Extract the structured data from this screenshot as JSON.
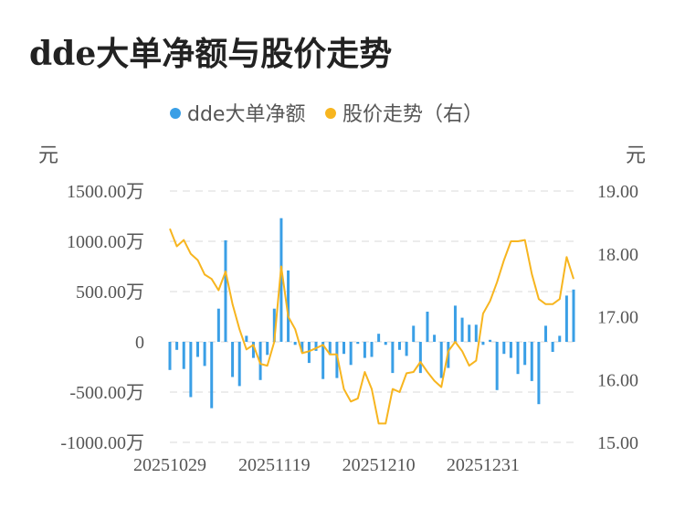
{
  "title": "dde大单净额与股价走势",
  "chart_data": {
    "type": "bar+line",
    "title": "dde大单净额与股价走势",
    "legend": {
      "placement": "top-center",
      "items": [
        {
          "name": "dde大单净额",
          "color": "#3a9fe6"
        },
        {
          "name": "股价走势（右）",
          "color": "#f7b51f"
        }
      ]
    },
    "left_unit": "元",
    "right_unit": "元",
    "left_axis": {
      "ticks": [
        -1000,
        -500,
        0,
        500,
        1000,
        1500
      ],
      "tick_labels": [
        "-1000.00万",
        "-500.00万",
        "0",
        "500.00万",
        "1000.00万",
        "1500.00万"
      ],
      "ylim": [
        -1000,
        1500
      ]
    },
    "right_axis": {
      "ticks": [
        15,
        16,
        17,
        18,
        19
      ],
      "tick_labels": [
        "15.00",
        "16.00",
        "17.00",
        "18.00",
        "19.00"
      ],
      "ylim": [
        15,
        19
      ]
    },
    "x_tick_labels": [
      {
        "index": 0,
        "label": "20251029"
      },
      {
        "index": 15,
        "label": "20251119"
      },
      {
        "index": 30,
        "label": "20251210"
      },
      {
        "index": 45,
        "label": "20251231"
      }
    ],
    "grid": true,
    "series": [
      {
        "name": "dde大单净额",
        "type": "bar",
        "axis": "left",
        "color": "#3a9fe6",
        "values": [
          -280,
          -80,
          -270,
          -550,
          -150,
          -240,
          -660,
          330,
          1010,
          -350,
          -440,
          60,
          -160,
          -380,
          -130,
          330,
          1230,
          710,
          -30,
          -100,
          -210,
          -90,
          -370,
          -130,
          -360,
          -120,
          -230,
          -20,
          -160,
          -150,
          80,
          -30,
          -310,
          -80,
          -140,
          160,
          -310,
          300,
          70,
          -360,
          -260,
          360,
          240,
          170,
          170,
          -30,
          20,
          -480,
          -120,
          -160,
          -320,
          -230,
          -390,
          -620,
          160,
          -100,
          60,
          460,
          520
        ],
        "unit": "万"
      },
      {
        "name": "股价走势（右）",
        "type": "line",
        "axis": "right",
        "color": "#f7b51f",
        "values": [
          18.4,
          18.12,
          18.22,
          18.0,
          17.9,
          17.67,
          17.6,
          17.42,
          17.72,
          17.2,
          16.8,
          16.48,
          16.55,
          16.25,
          16.22,
          16.6,
          17.8,
          17.0,
          16.8,
          16.42,
          16.45,
          16.5,
          16.55,
          16.4,
          16.4,
          15.85,
          15.65,
          15.7,
          16.12,
          15.85,
          15.3,
          15.3,
          15.85,
          15.8,
          16.1,
          16.12,
          16.28,
          16.12,
          15.98,
          15.88,
          16.45,
          16.6,
          16.45,
          16.22,
          16.3,
          17.05,
          17.25,
          17.55,
          17.9,
          18.2,
          18.2,
          18.22,
          17.68,
          17.28,
          17.2,
          17.2,
          17.28,
          17.95,
          17.6
        ]
      }
    ]
  }
}
